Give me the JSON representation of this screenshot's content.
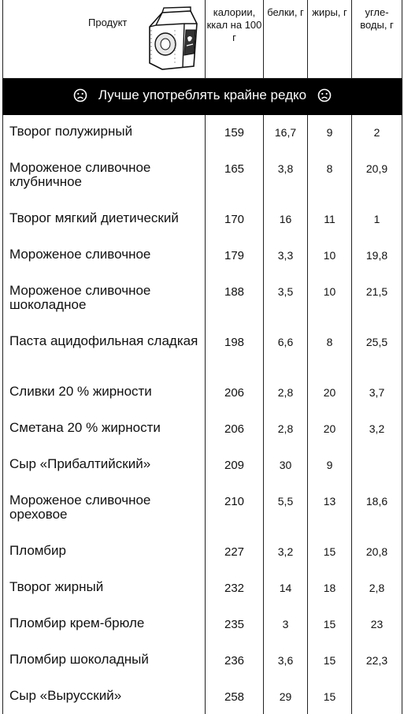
{
  "header": {
    "product": "Продукт",
    "calories": "калории, ккал на 100 г",
    "protein": "белки, г",
    "fat": "жиры, г",
    "carbs": "угле-воды, г"
  },
  "section": {
    "title": "Лучше употреблять крайне редко",
    "icon": "sad-face-icon"
  },
  "rows": [
    {
      "name": "Творог полужирный",
      "kcal": "159",
      "protein": "16,7",
      "fat": "9",
      "carbs": "2"
    },
    {
      "name": "Мороженое сливочное клубничное",
      "kcal": "165",
      "protein": "3,8",
      "fat": "8",
      "carbs": "20,9"
    },
    {
      "name": "Творог мягкий диетический",
      "kcal": "170",
      "protein": "16",
      "fat": "11",
      "carbs": "1"
    },
    {
      "name": "Мороженое сливочное",
      "kcal": "179",
      "protein": "3,3",
      "fat": "10",
      "carbs": "19,8"
    },
    {
      "name": "Мороженое сливочное шоколадное",
      "kcal": "188",
      "protein": "3,5",
      "fat": "10",
      "carbs": "21,5"
    },
    {
      "name": "Паста ацидофильная сладкая",
      "kcal": "198",
      "protein": "6,6",
      "fat": "8",
      "carbs": "25,5"
    },
    {
      "name": "Сливки 20 % жирности",
      "kcal": "206",
      "protein": "2,8",
      "fat": "20",
      "carbs": "3,7"
    },
    {
      "name": "Сметана 20 % жирности",
      "kcal": "206",
      "protein": "2,8",
      "fat": "20",
      "carbs": "3,2"
    },
    {
      "name": "Сыр «Прибалтийский»",
      "kcal": "209",
      "protein": "30",
      "fat": "9",
      "carbs": ""
    },
    {
      "name": "Мороженое сливочное ореховое",
      "kcal": "210",
      "protein": "5,5",
      "fat": "13",
      "carbs": "18,6"
    },
    {
      "name": "Пломбир",
      "kcal": "227",
      "protein": "3,2",
      "fat": "15",
      "carbs": "20,8"
    },
    {
      "name": "Творог жирный",
      "kcal": "232",
      "protein": "14",
      "fat": "18",
      "carbs": "2,8"
    },
    {
      "name": "Пломбир крем-брюле",
      "kcal": "235",
      "protein": "3",
      "fat": "15",
      "carbs": "23"
    },
    {
      "name": "Пломбир шоколадный",
      "kcal": "236",
      "protein": "3,6",
      "fat": "15",
      "carbs": "22,3"
    },
    {
      "name": "Сыр «Вырусский»",
      "kcal": "258",
      "protein": "29",
      "fat": "15",
      "carbs": ""
    }
  ]
}
